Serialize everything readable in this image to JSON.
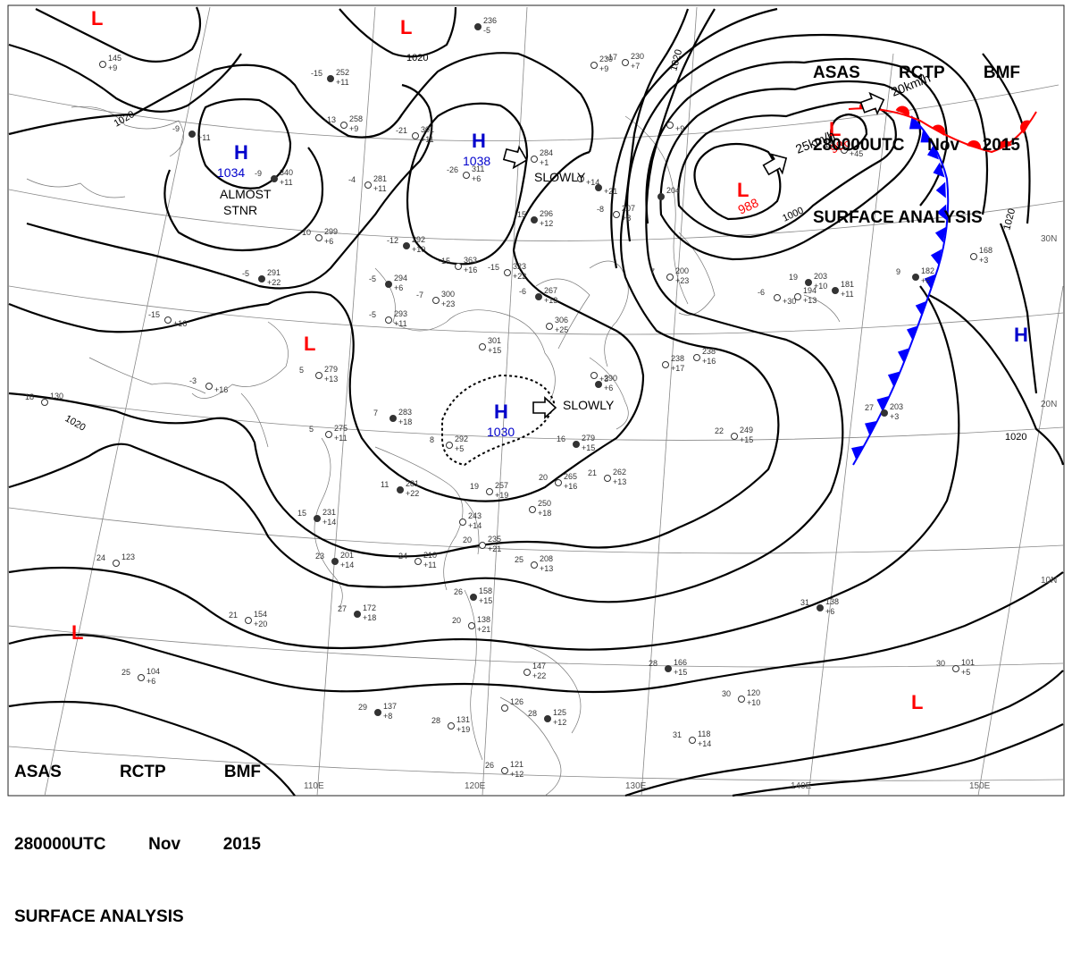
{
  "header_top": {
    "line1": [
      "ASAS",
      "RCTP",
      "BMF"
    ],
    "line2": [
      "280000UTC",
      "Nov",
      "2015"
    ],
    "line3": "SURFACE ANALYSIS"
  },
  "header_bottom": {
    "line1": [
      "ASAS",
      "RCTP",
      "BMF"
    ],
    "line2": [
      "280000UTC",
      "Nov",
      "2015"
    ],
    "line3": "SURFACE ANALYSIS"
  },
  "isobar_labels": [
    "1020",
    "1020",
    "1020",
    "1020",
    "1020",
    "1000"
  ],
  "pressure_centers": [
    {
      "kind": "H",
      "value": "1034",
      "color": "#0000cc"
    },
    {
      "kind": "H",
      "value": "1038",
      "color": "#0000cc"
    },
    {
      "kind": "H",
      "value": "1030",
      "color": "#0000cc"
    },
    {
      "kind": "H",
      "value": "",
      "color": "#0000cc"
    },
    {
      "kind": "L",
      "value": "988",
      "color": "#ff0000"
    },
    {
      "kind": "L",
      "value": "986",
      "color": "#ff0000"
    },
    {
      "kind": "L",
      "value": "",
      "color": "#ff0000"
    },
    {
      "kind": "L",
      "value": "",
      "color": "#ff0000"
    },
    {
      "kind": "L",
      "value": "",
      "color": "#ff0000"
    },
    {
      "kind": "L",
      "value": "",
      "color": "#ff0000"
    }
  ],
  "annotations": {
    "almost": "ALMOST",
    "stnr": "STNR",
    "slowly1": "SLOWLY",
    "slowly2": "SLOWLY",
    "speed1": "25km/h",
    "speed2": "20km/h"
  },
  "lat_labels": [
    "30N",
    "20N",
    "10N"
  ],
  "lon_labels": [
    "110E",
    "120E",
    "130E",
    "140E",
    "150E"
  ],
  "stations": [
    {
      "t": "-15",
      "p": "252",
      "d": "+11"
    },
    {
      "t": "-13",
      "p": "258",
      "d": "+9"
    },
    {
      "t": "-21",
      "p": "301",
      "d": "+11"
    },
    {
      "t": "-9",
      "p": "340",
      "d": "+11"
    },
    {
      "t": "-4",
      "p": "281",
      "d": "+11"
    },
    {
      "t": "-10",
      "p": "299",
      "d": "+6"
    },
    {
      "t": "-12",
      "p": "292",
      "d": "+10"
    },
    {
      "t": "22",
      "p": "284",
      "d": "+1"
    },
    {
      "t": "-26",
      "p": "311",
      "d": "+6"
    },
    {
      "t": "-15",
      "p": "296",
      "d": "+12"
    },
    {
      "t": "-15",
      "p": "363",
      "d": "+16"
    },
    {
      "t": "-15",
      "p": "323",
      "d": "+22"
    },
    {
      "t": "-5",
      "p": "294",
      "d": "+6"
    },
    {
      "t": "-7",
      "p": "300",
      "d": "+23"
    },
    {
      "t": "-5",
      "p": "293",
      "d": "+11"
    },
    {
      "t": "-6",
      "p": "267",
      "d": "+13"
    },
    {
      "t": "",
      "p": "301",
      "d": "+15"
    },
    {
      "t": "-15",
      "p": "",
      "d": "+16"
    },
    {
      "t": "-5",
      "p": "291",
      "d": "+22"
    },
    {
      "t": "5",
      "p": "279",
      "d": "+13"
    },
    {
      "t": "-3",
      "p": "",
      "d": "+16"
    },
    {
      "t": "7",
      "p": "283",
      "d": "+18"
    },
    {
      "t": "5",
      "p": "275",
      "d": "+11"
    },
    {
      "t": "8",
      "p": "292",
      "d": "+5"
    },
    {
      "t": "16",
      "p": "279",
      "d": "+15"
    },
    {
      "t": "20",
      "p": "265",
      "d": "+16"
    },
    {
      "t": "21",
      "p": "262",
      "d": "+13"
    },
    {
      "t": "11",
      "p": "281",
      "d": "+22"
    },
    {
      "t": "19",
      "p": "257",
      "d": "+19"
    },
    {
      "t": "",
      "p": "250",
      "d": "+18"
    },
    {
      "t": "15",
      "p": "231",
      "d": "+14"
    },
    {
      "t": "",
      "p": "243",
      "d": "+14"
    },
    {
      "t": "20",
      "p": "235",
      "d": "+21"
    },
    {
      "t": "23",
      "p": "201",
      "d": "+14"
    },
    {
      "t": "24",
      "p": "210",
      "d": "+11"
    },
    {
      "t": "25",
      "p": "208",
      "d": "+13"
    },
    {
      "t": "27",
      "p": "172",
      "d": "+18"
    },
    {
      "t": "21",
      "p": "154",
      "d": "+20"
    },
    {
      "t": "24",
      "p": "123",
      "d": ""
    },
    {
      "t": "26",
      "p": "158",
      "d": "+15"
    },
    {
      "t": "20",
      "p": "138",
      "d": "+21"
    },
    {
      "t": "25",
      "p": "104",
      "d": "+6"
    },
    {
      "t": "29",
      "p": "137",
      "d": "+8"
    },
    {
      "t": "28",
      "p": "131",
      "d": "+19"
    },
    {
      "t": "26",
      "p": "121",
      "d": "+12"
    },
    {
      "t": "28",
      "p": "125",
      "d": "+12"
    },
    {
      "t": "",
      "p": "126",
      "d": ""
    },
    {
      "t": "",
      "p": "147",
      "d": "+22"
    },
    {
      "t": "28",
      "p": "166",
      "d": "+15"
    },
    {
      "t": "30",
      "p": "120",
      "d": "+10"
    },
    {
      "t": "31",
      "p": "118",
      "d": "+14"
    },
    {
      "t": "31",
      "p": "138",
      "d": "+6"
    },
    {
      "t": "30",
      "p": "101",
      "d": "+5"
    },
    {
      "t": "22",
      "p": "249",
      "d": "+15"
    },
    {
      "t": "27",
      "p": "203",
      "d": "+3"
    },
    {
      "t": "",
      "p": "238",
      "d": "+16"
    },
    {
      "t": "",
      "p": "238",
      "d": "+17"
    },
    {
      "t": "19",
      "p": "203",
      "d": "+10"
    },
    {
      "t": "",
      "p": "194",
      "d": "+13"
    },
    {
      "t": "",
      "p": "168",
      "d": "+3"
    },
    {
      "t": "9",
      "p": "182",
      "d": "+6"
    },
    {
      "t": "-17",
      "p": "230",
      "d": "+7"
    },
    {
      "t": "-8",
      "p": "207",
      "d": "+8"
    },
    {
      "t": "",
      "p": "204",
      "d": ""
    },
    {
      "t": "7",
      "p": "200",
      "d": "+23"
    },
    {
      "t": "18",
      "p": "130",
      "d": ""
    },
    {
      "t": "",
      "p": "236",
      "d": "-5"
    },
    {
      "t": "",
      "p": "145",
      "d": "+9"
    },
    {
      "t": "",
      "p": "230",
      "d": "+9"
    },
    {
      "t": "-9",
      "p": "",
      "d": "+11"
    },
    {
      "t": "",
      "p": "306",
      "d": "+25"
    },
    {
      "t": "",
      "p": "",
      "d": "+3"
    },
    {
      "t": "",
      "p": "290",
      "d": "+6"
    },
    {
      "t": "14",
      "p": "",
      "d": "+45"
    },
    {
      "t": "-6",
      "p": "",
      "d": "+30"
    },
    {
      "t": "",
      "p": "181",
      "d": "+11"
    },
    {
      "t": "",
      "p": "",
      "d": "+9"
    },
    {
      "t": "",
      "p": "",
      "d": "+14"
    },
    {
      "t": "",
      "p": "",
      "d": "+21"
    }
  ]
}
